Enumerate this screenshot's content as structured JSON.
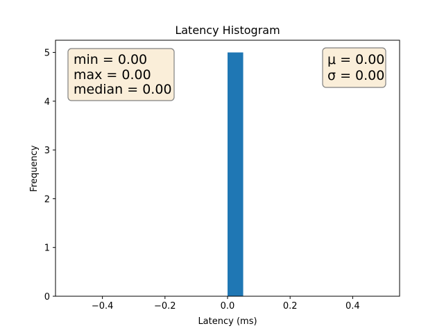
{
  "chart_data": {
    "type": "bar",
    "title": "Latency Histogram",
    "xlabel": "Latency (ms)",
    "ylabel": "Frequency",
    "xlim": [
      -0.55,
      0.55
    ],
    "ylim": [
      0,
      5.25
    ],
    "xticks": [
      -0.4,
      -0.2,
      0.0,
      0.2,
      0.4
    ],
    "xtick_labels": [
      "−0.4",
      "−0.2",
      "0.0",
      "0.2",
      "0.4"
    ],
    "yticks": [
      0,
      1,
      2,
      3,
      4,
      5
    ],
    "ytick_labels": [
      "0",
      "1",
      "2",
      "3",
      "4",
      "5"
    ],
    "bins": [
      {
        "x_start": 0.0,
        "x_end": 0.05,
        "count": 5
      }
    ],
    "bar_color": "#1f77b4",
    "grid": false,
    "annotations": {
      "left_box": [
        "min = 0.00",
        "max = 0.00",
        "median = 0.00"
      ],
      "right_box": [
        "μ = 0.00",
        "σ = 0.00"
      ],
      "box_fill": "#f5deb3",
      "box_edge": "#808080"
    }
  }
}
